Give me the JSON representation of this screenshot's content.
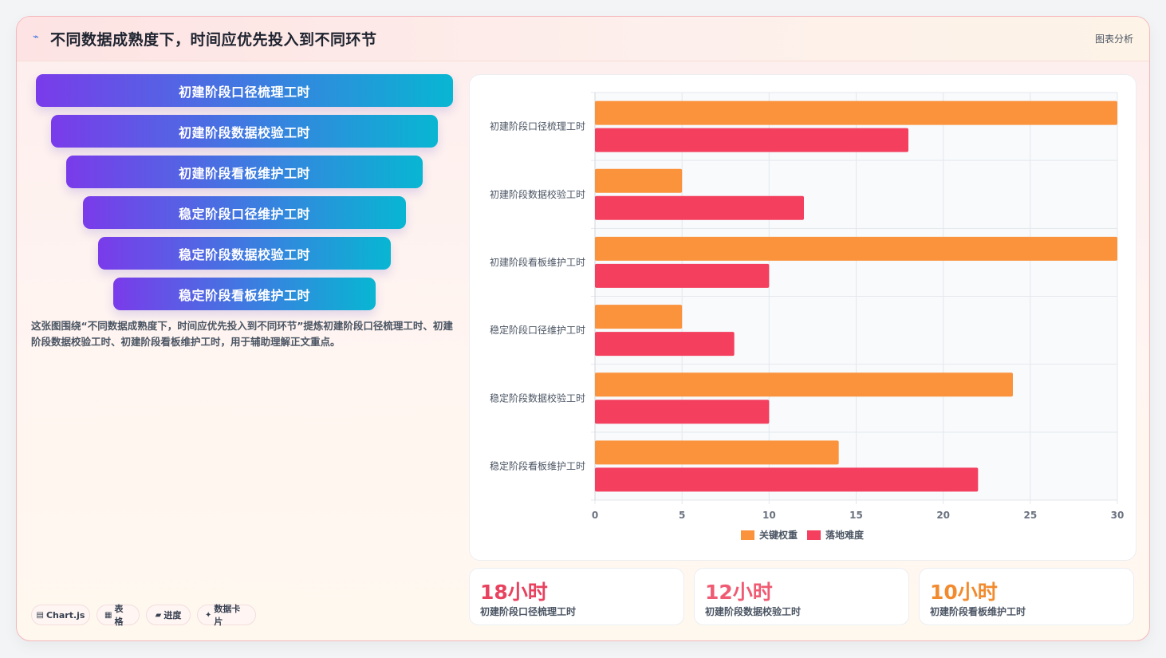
{
  "header": {
    "title": "不同数据成熟度下，时间应优先投入到不同环节",
    "tag": "图表分析",
    "icon": "spark-icon"
  },
  "funnel": {
    "items": [
      "初建阶段口径梳理工时",
      "初建阶段数据校验工时",
      "初建阶段看板维护工时",
      "稳定阶段口径维护工时",
      "稳定阶段数据校验工时",
      "稳定阶段看板维护工时"
    ]
  },
  "description": "这张图围绕“不同数据成熟度下，时间应优先投入到不同环节”提炼初建阶段口径梳理工时、初建阶段数据校验工时、初建阶段看板维护工时，用于辅助理解正文重点。",
  "chips": [
    {
      "icon": "chart-icon",
      "glyph": "▤",
      "label": "Chart.js"
    },
    {
      "icon": "table-icon",
      "glyph": "▦",
      "label": "表格"
    },
    {
      "icon": "progress-icon",
      "glyph": "▰",
      "label": "进度"
    },
    {
      "icon": "card-icon",
      "glyph": "✦",
      "label": "数据卡片"
    }
  ],
  "stats": [
    {
      "value": "18小时",
      "label": "初建阶段口径梳理工时",
      "color": "#e8425f"
    },
    {
      "value": "12小时",
      "label": "初建阶段数据校验工时",
      "color": "#ef5b73"
    },
    {
      "value": "10小时",
      "label": "初建阶段看板维护工时",
      "color": "#f28a2e"
    }
  ],
  "chart_data": {
    "type": "bar",
    "orientation": "horizontal",
    "categories": [
      "初建阶段口径梳理工时",
      "初建阶段数据校验工时",
      "初建阶段看板维护工时",
      "稳定阶段口径维护工时",
      "稳定阶段数据校验工时",
      "稳定阶段看板维护工时"
    ],
    "series": [
      {
        "name": "关键权重",
        "color": "#fb923c",
        "values": [
          30,
          5,
          30,
          5,
          24,
          14
        ]
      },
      {
        "name": "落地难度",
        "color": "#f43f5e",
        "values": [
          18,
          12,
          10,
          8,
          10,
          22
        ]
      }
    ],
    "xlim": [
      0,
      30
    ],
    "xticks": [
      0,
      5,
      10,
      15,
      20,
      25,
      30
    ],
    "grid": true,
    "legend": "bottom"
  }
}
